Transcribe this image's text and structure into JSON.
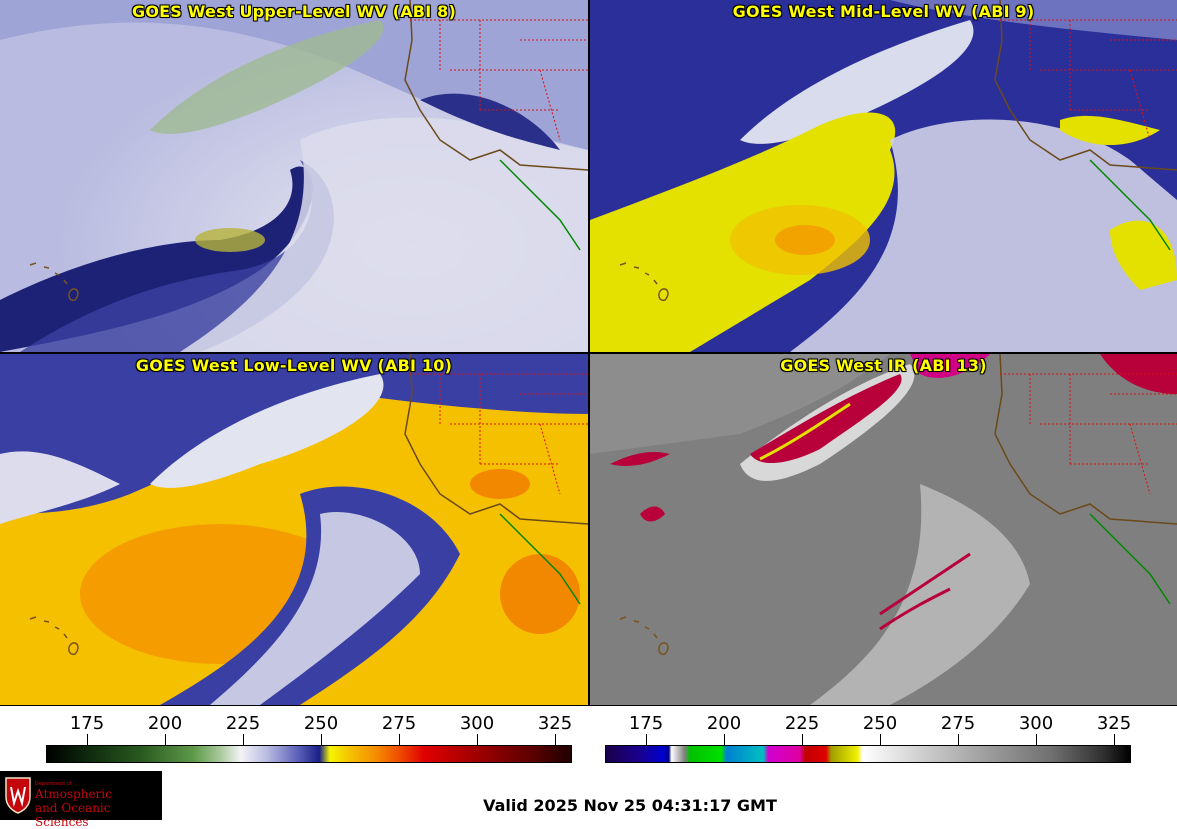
{
  "panels": [
    {
      "title": "GOES West Upper-Level WV (ABI 8)"
    },
    {
      "title": "GOES West Mid-Level WV (ABI 9)"
    },
    {
      "title": "GOES West Low-Level WV (ABI 10)"
    },
    {
      "title": "GOES West IR (ABI 13)"
    }
  ],
  "colorbars": [
    {
      "ticks": [
        "175",
        "200",
        "225",
        "250",
        "275",
        "300",
        "325"
      ]
    },
    {
      "ticks": [
        "175",
        "200",
        "225",
        "250",
        "275",
        "300",
        "325"
      ]
    }
  ],
  "logo": {
    "dept": "Department of",
    "line1": "Atmospheric",
    "line2": "and Oceanic Sciences"
  },
  "valid_time": "Valid 2025 Nov 25 04:31:17 GMT",
  "colors": {
    "title": "#ffff00",
    "borders": "#cc0000",
    "coast": "#6b4a1a"
  }
}
